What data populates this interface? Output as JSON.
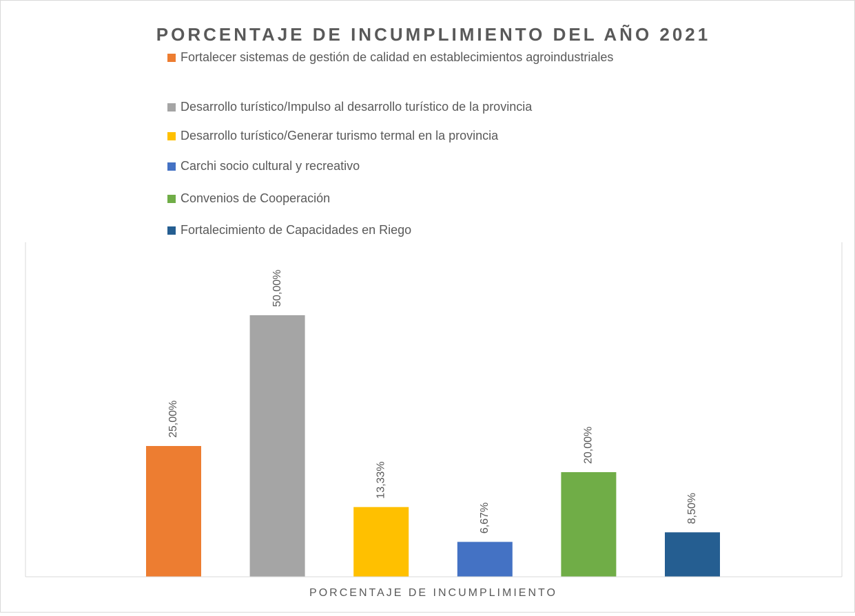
{
  "chart_data": {
    "type": "bar",
    "title": "PORCENTAJE DE INCUMPLIMIENTO DEL AÑO 2021",
    "categories": [
      "PORCENTAJE DE INCUMPLIMIENTO"
    ],
    "series": [
      {
        "name": "Fortalecer sistemas de gestión de calidad en establecimientos agroindustriales",
        "color": "#ed7d31",
        "values": [
          25
        ],
        "value_labels": [
          "25,00%"
        ]
      },
      {
        "name": "Desarrollo turístico/Impulso al desarrollo turístico de la provincia",
        "color": "#a5a5a5",
        "values": [
          50
        ],
        "value_labels": [
          "50,00%"
        ]
      },
      {
        "name": "Desarrollo turístico/Generar turismo termal en la provincia",
        "color": "#ffc000",
        "values": [
          13.33
        ],
        "value_labels": [
          "13,33%"
        ]
      },
      {
        "name": "Carchi socio cultural y recreativo",
        "color": "#4472c4",
        "values": [
          6.67
        ],
        "value_labels": [
          "6,67%"
        ]
      },
      {
        "name": "Convenios de Cooperación",
        "color": "#70ad47",
        "values": [
          20
        ],
        "value_labels": [
          "20,00%"
        ]
      },
      {
        "name": "Fortalecimiento de Capacidades en Riego",
        "color": "#255e91",
        "values": [
          8.5
        ],
        "value_labels": [
          "8,50%"
        ]
      }
    ],
    "ylim": [
      0,
      60
    ],
    "legend": "top"
  }
}
